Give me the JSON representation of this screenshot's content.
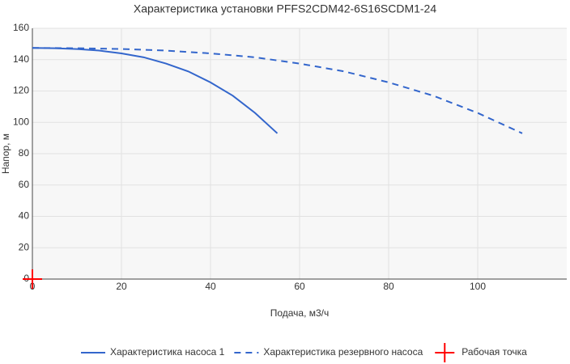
{
  "chart_data": {
    "type": "line",
    "title": "Характеристика установки PFFS2CDM42-6S16SCDM1-24",
    "x_label": "Подача, м3/ч",
    "y_label": "Напор, м",
    "xlim": [
      0,
      120
    ],
    "xticks": [
      0,
      20,
      40,
      60,
      80,
      100
    ],
    "ylim": [
      0,
      160
    ],
    "yticks": [
      0,
      20,
      40,
      60,
      80,
      100,
      120,
      140,
      160
    ],
    "grid": true,
    "legend": "bottom",
    "series": [
      {
        "name": "Характеристика насоса 1",
        "color": "#3366cc",
        "dash": "solid",
        "x": [
          0,
          5,
          10,
          15,
          20,
          25,
          30,
          35,
          40,
          45,
          50,
          55
        ],
        "values": [
          147.5,
          147.3,
          146.8,
          145.8,
          144,
          141.5,
          137.5,
          132.5,
          125.5,
          117,
          106,
          93
        ]
      },
      {
        "name": "Характеристика резервного насоса",
        "color": "#3366cc",
        "dash": "dash",
        "x": [
          0,
          10,
          20,
          30,
          40,
          50,
          60,
          70,
          80,
          90,
          100,
          110
        ],
        "values": [
          147.5,
          147.3,
          146.8,
          145.8,
          144,
          141.5,
          137.5,
          132.5,
          125.5,
          117,
          106,
          93
        ]
      },
      {
        "name": "Рабочая точка",
        "color": "#ff0000",
        "marker": "cross",
        "x": [
          0
        ],
        "values": [
          0
        ]
      }
    ]
  }
}
